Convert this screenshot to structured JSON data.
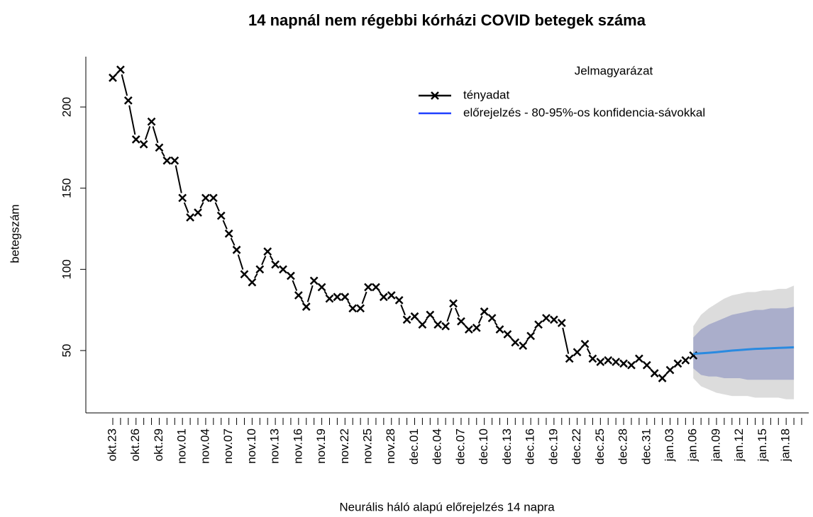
{
  "chart_data": {
    "type": "line",
    "title": "14 napnál nem régebbi kórházi COVID betegek száma",
    "xlabel": "Neurális háló alapú előrejelzés 14 napra",
    "ylabel": "betegszám",
    "legend_title": "Jelmagyarázat",
    "legend": "top-right",
    "categories": [
      "okt.23",
      null,
      null,
      "okt.26",
      null,
      null,
      "okt.29",
      null,
      null,
      "nov.01",
      null,
      null,
      "nov.04",
      null,
      null,
      "nov.07",
      null,
      null,
      "nov.10",
      null,
      null,
      "nov.13",
      null,
      null,
      "nov.16",
      null,
      null,
      "nov.19",
      null,
      null,
      "nov.22",
      null,
      null,
      "nov.25",
      null,
      null,
      "nov.28",
      null,
      null,
      "dec.01",
      null,
      null,
      "dec.04",
      null,
      null,
      "dec.07",
      null,
      null,
      "dec.10",
      null,
      null,
      "dec.13",
      null,
      null,
      "dec.16",
      null,
      null,
      "dec.19",
      null,
      null,
      "dec.22",
      null,
      null,
      "dec.25",
      null,
      null,
      "dec.28",
      null,
      null,
      "dec.31",
      null,
      null,
      "jan.03",
      null,
      null,
      "jan.06",
      null,
      null,
      "jan.09",
      null,
      null,
      "jan.12",
      null,
      null,
      "jan.15",
      null,
      null,
      "jan.18",
      null,
      null
    ],
    "series": [
      {
        "name": "tényadat",
        "color": "#000000",
        "values": [
          218,
          223,
          204,
          180,
          177,
          191,
          175,
          167,
          167,
          144,
          132,
          135,
          144,
          144,
          133,
          122,
          112,
          97,
          92,
          100,
          111,
          103,
          100,
          96,
          84,
          77,
          93,
          89,
          82,
          83,
          83,
          76,
          76,
          89,
          89,
          83,
          84,
          81,
          69,
          71,
          66,
          72,
          66,
          65,
          79,
          68,
          63,
          64,
          74,
          70,
          63,
          60,
          55,
          53,
          59,
          66,
          70,
          69,
          67,
          45,
          49,
          54,
          45,
          43,
          44,
          43,
          42,
          41,
          45,
          41,
          36,
          33,
          38,
          42,
          44,
          47,
          null,
          null,
          null,
          null,
          null,
          null,
          null,
          null,
          null,
          null,
          null,
          null,
          null,
          null
        ]
      },
      {
        "name": "előrejelzés - 80-95%-os konfidencia-sávokkal",
        "color": "#2a8ae0",
        "values": [
          null,
          null,
          null,
          null,
          null,
          null,
          null,
          null,
          null,
          null,
          null,
          null,
          null,
          null,
          null,
          null,
          null,
          null,
          null,
          null,
          null,
          null,
          null,
          null,
          null,
          null,
          null,
          null,
          null,
          null,
          null,
          null,
          null,
          null,
          null,
          null,
          null,
          null,
          null,
          null,
          null,
          null,
          null,
          null,
          null,
          null,
          null,
          null,
          null,
          null,
          null,
          null,
          null,
          null,
          null,
          null,
          null,
          null,
          null,
          null,
          null,
          null,
          null,
          null,
          null,
          null,
          null,
          null,
          null,
          null,
          null,
          null,
          null,
          null,
          null,
          48,
          48.3,
          48.6,
          49,
          49.5,
          50,
          50.3,
          50.7,
          51,
          51.2,
          51.4,
          51.6,
          51.8,
          52,
          null
        ]
      }
    ],
    "bands": [
      {
        "color": "#dcdcdc",
        "upper": [
          null,
          null,
          null,
          null,
          null,
          null,
          null,
          null,
          null,
          null,
          null,
          null,
          null,
          null,
          null,
          null,
          null,
          null,
          null,
          null,
          null,
          null,
          null,
          null,
          null,
          null,
          null,
          null,
          null,
          null,
          null,
          null,
          null,
          null,
          null,
          null,
          null,
          null,
          null,
          null,
          null,
          null,
          null,
          null,
          null,
          null,
          null,
          null,
          null,
          null,
          null,
          null,
          null,
          null,
          null,
          null,
          null,
          null,
          null,
          null,
          null,
          null,
          null,
          null,
          null,
          null,
          null,
          null,
          null,
          null,
          null,
          null,
          null,
          null,
          null,
          65,
          72,
          76,
          79,
          82,
          84,
          85,
          86,
          86,
          87,
          87,
          88,
          88,
          90,
          null
        ],
        "lower": [
          null,
          null,
          null,
          null,
          null,
          null,
          null,
          null,
          null,
          null,
          null,
          null,
          null,
          null,
          null,
          null,
          null,
          null,
          null,
          null,
          null,
          null,
          null,
          null,
          null,
          null,
          null,
          null,
          null,
          null,
          null,
          null,
          null,
          null,
          null,
          null,
          null,
          null,
          null,
          null,
          null,
          null,
          null,
          null,
          null,
          null,
          null,
          null,
          null,
          null,
          null,
          null,
          null,
          null,
          null,
          null,
          null,
          null,
          null,
          null,
          null,
          null,
          null,
          null,
          null,
          null,
          null,
          null,
          null,
          null,
          null,
          null,
          null,
          null,
          null,
          33,
          28,
          26,
          24,
          23,
          22,
          22,
          22,
          21,
          21,
          21,
          21,
          20,
          20,
          null
        ]
      },
      {
        "color": "#aaaecb",
        "upper": [
          null,
          null,
          null,
          null,
          null,
          null,
          null,
          null,
          null,
          null,
          null,
          null,
          null,
          null,
          null,
          null,
          null,
          null,
          null,
          null,
          null,
          null,
          null,
          null,
          null,
          null,
          null,
          null,
          null,
          null,
          null,
          null,
          null,
          null,
          null,
          null,
          null,
          null,
          null,
          null,
          null,
          null,
          null,
          null,
          null,
          null,
          null,
          null,
          null,
          null,
          null,
          null,
          null,
          null,
          null,
          null,
          null,
          null,
          null,
          null,
          null,
          null,
          null,
          null,
          null,
          null,
          null,
          null,
          null,
          null,
          null,
          null,
          null,
          null,
          null,
          58,
          63,
          66,
          68,
          70,
          72,
          73,
          74,
          75,
          75,
          76,
          76,
          76,
          77,
          null
        ],
        "lower": [
          null,
          null,
          null,
          null,
          null,
          null,
          null,
          null,
          null,
          null,
          null,
          null,
          null,
          null,
          null,
          null,
          null,
          null,
          null,
          null,
          null,
          null,
          null,
          null,
          null,
          null,
          null,
          null,
          null,
          null,
          null,
          null,
          null,
          null,
          null,
          null,
          null,
          null,
          null,
          null,
          null,
          null,
          null,
          null,
          null,
          null,
          null,
          null,
          null,
          null,
          null,
          null,
          null,
          null,
          null,
          null,
          null,
          null,
          null,
          null,
          null,
          null,
          null,
          null,
          null,
          null,
          null,
          null,
          null,
          null,
          null,
          null,
          null,
          null,
          null,
          39,
          35,
          34,
          34,
          33,
          33,
          33,
          32,
          32,
          32,
          32,
          32,
          32,
          32,
          null
        ]
      }
    ],
    "ylim": [
      11.6,
      231
    ],
    "yticks": [
      50,
      100,
      150,
      200
    ]
  }
}
